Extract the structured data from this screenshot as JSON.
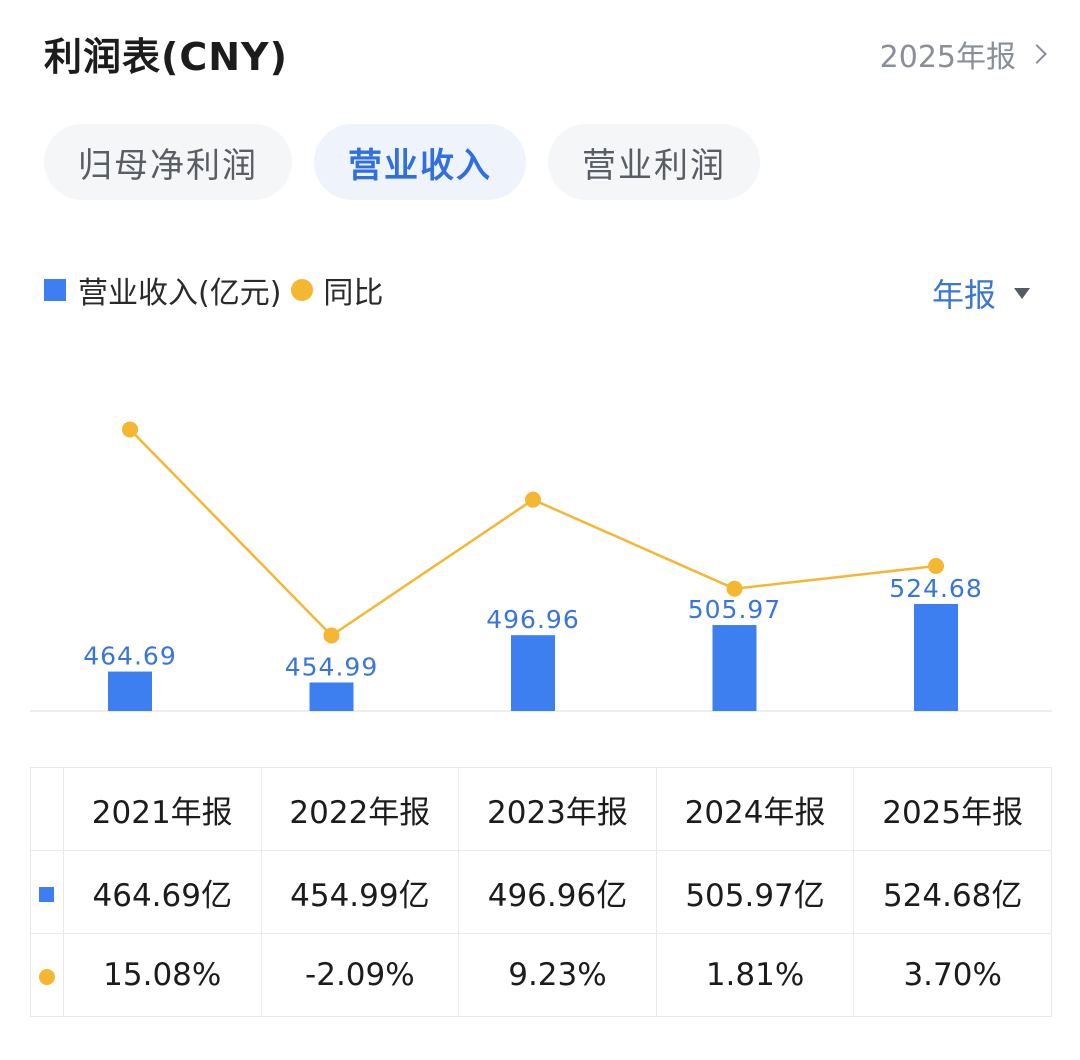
{
  "header": {
    "title": "利润表(CNY)",
    "period_link": "2025年报"
  },
  "tabs": [
    {
      "label": "归母净利润",
      "active": false
    },
    {
      "label": "营业收入",
      "active": true
    },
    {
      "label": "营业利润",
      "active": false
    }
  ],
  "legend": {
    "bar_label": "营业收入(亿元)",
    "line_label": "同比"
  },
  "period_select": "年报",
  "colors": {
    "bar": "#3d7ff0",
    "line": "#f5b731",
    "positive": "#e04848",
    "negative": "#2ea36a",
    "label": "#3a76d8"
  },
  "chart_data": {
    "type": "bar",
    "categories": [
      "2021年报",
      "2022年报",
      "2023年报",
      "2024年报",
      "2025年报"
    ],
    "series": [
      {
        "name": "营业收入(亿元)",
        "type": "bar",
        "values": [
          464.69,
          454.99,
          496.96,
          505.97,
          524.68
        ],
        "labels": [
          "464.69",
          "454.99",
          "496.96",
          "505.97",
          "524.68"
        ]
      },
      {
        "name": "同比",
        "type": "line",
        "values": [
          15.08,
          -2.09,
          9.23,
          1.81,
          3.7
        ]
      }
    ]
  },
  "table": {
    "headers": [
      "2021年报",
      "2022年报",
      "2023年报",
      "2024年报",
      "2025年报"
    ],
    "revenue": [
      "464.69亿",
      "454.99亿",
      "496.96亿",
      "505.97亿",
      "524.68亿"
    ],
    "yoy": [
      "15.08%",
      "-2.09%",
      "9.23%",
      "1.81%",
      "3.70%"
    ]
  }
}
